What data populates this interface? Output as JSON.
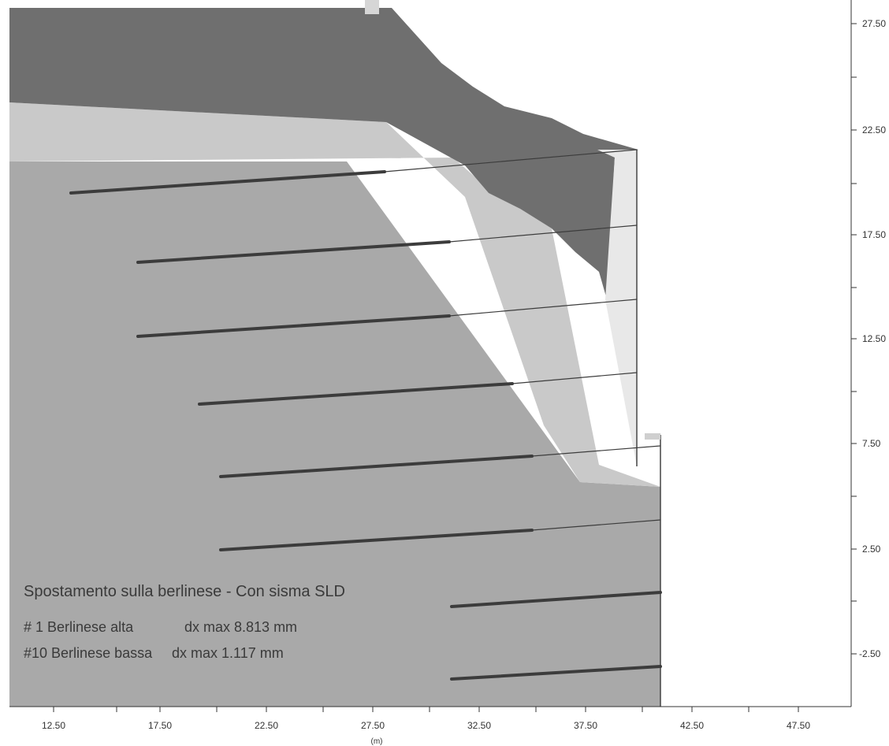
{
  "annotation": {
    "title": "Spostamento sulla berlinese - Con sisma SLD",
    "line1_id": "# 1 Berlinese alta",
    "line1_value": "dx max 8.813 mm",
    "line2_id": "#10 Berlinese bassa",
    "line2_value": "dx max 1.117 mm"
  },
  "axes": {
    "x_unit": "(m)",
    "x_ticks": [
      "12.50",
      "17.50",
      "22.50",
      "27.50",
      "32.50",
      "37.50",
      "42.50",
      "47.50"
    ],
    "y_ticks": [
      "27.50",
      "22.50",
      "17.50",
      "12.50",
      "7.50",
      "2.50",
      "-2.50"
    ]
  },
  "colors": {
    "upper_fill": "#6f6f6f",
    "middle_fill": "#c9c9c9",
    "ground_fill": "#a9a9a9",
    "wedge_fill": "#e8e8e8",
    "anchor": "#3c3c3c"
  }
}
